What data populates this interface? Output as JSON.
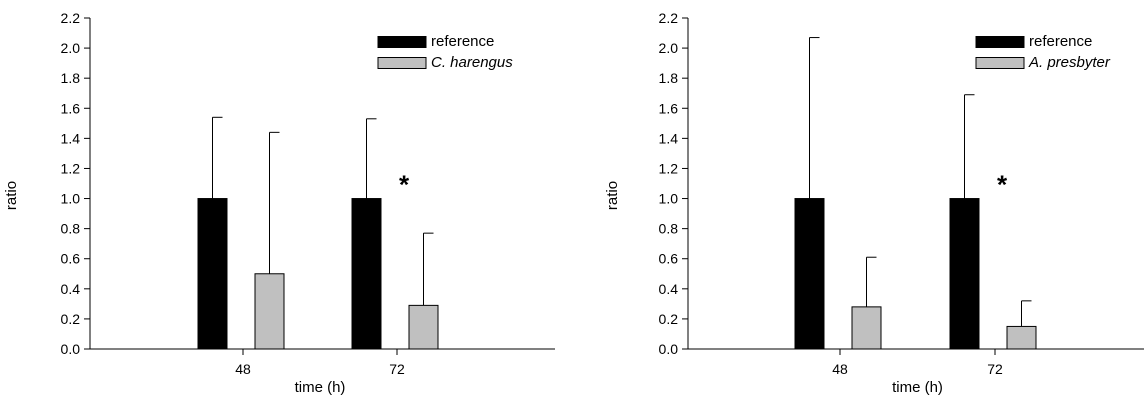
{
  "chart_data": [
    {
      "type": "bar",
      "categories": [
        "48",
        "72"
      ],
      "series": [
        {
          "name": "reference",
          "values": [
            1.0,
            1.0
          ],
          "error_plus": [
            0.54,
            0.53
          ],
          "color": "#000000"
        },
        {
          "name": "C. harengus",
          "values": [
            0.5,
            0.29
          ],
          "error_plus": [
            0.94,
            0.48
          ],
          "color": "#c0c0c0"
        }
      ],
      "xlabel": "time (h)",
      "ylabel": "ratio",
      "ylim": [
        0,
        2.2
      ],
      "yticks": [
        "0.0",
        "0.2",
        "0.4",
        "0.6",
        "0.8",
        "1.0",
        "1.2",
        "1.4",
        "1.6",
        "1.8",
        "2.0",
        "2.2"
      ],
      "annotations": [
        {
          "text": "*",
          "category": "72"
        }
      ],
      "legend": "top-right",
      "legend_italic_series": [
        1
      ],
      "grid": false
    },
    {
      "type": "bar",
      "categories": [
        "48",
        "72"
      ],
      "series": [
        {
          "name": "reference",
          "values": [
            1.0,
            1.0
          ],
          "error_plus": [
            1.07,
            0.69
          ],
          "color": "#000000"
        },
        {
          "name": "A. presbyter",
          "values": [
            0.28,
            0.15
          ],
          "error_plus": [
            0.33,
            0.17
          ],
          "color": "#c0c0c0"
        }
      ],
      "xlabel": "time (h)",
      "ylabel": "ratio",
      "ylim": [
        0,
        2.2
      ],
      "yticks": [
        "0.0",
        "0.2",
        "0.4",
        "0.6",
        "0.8",
        "1.0",
        "1.2",
        "1.4",
        "1.6",
        "1.8",
        "2.0",
        "2.2"
      ],
      "annotations": [
        {
          "text": "*",
          "category": "72"
        }
      ],
      "legend": "top-right",
      "legend_italic_series": [
        1
      ],
      "grid": false
    }
  ]
}
